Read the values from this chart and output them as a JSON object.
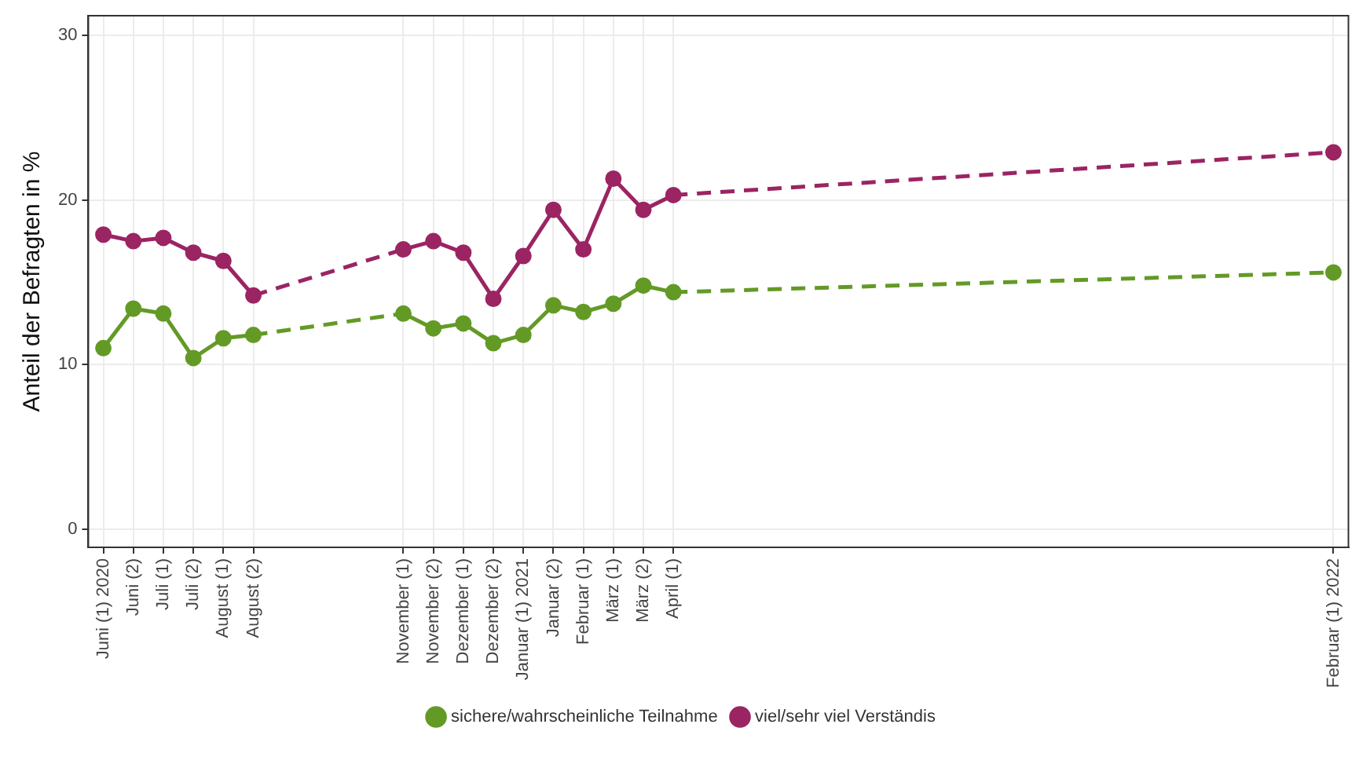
{
  "chart_data": {
    "type": "line",
    "ylabel": "Anteil der Befragten in %",
    "categories": [
      "Juni (1) 2020",
      "Juni (2)",
      "Juli (1)",
      "Juli (2)",
      "August (1)",
      "August (2)",
      null,
      null,
      null,
      null,
      "November (1)",
      "November (2)",
      "Dezember (1)",
      "Dezember (2)",
      "Januar (1) 2021",
      "Januar (2)",
      "Februar (1)",
      "März (1)",
      "März (2)",
      "April (1)",
      null,
      null,
      null,
      null,
      null,
      null,
      null,
      null,
      null,
      null,
      null,
      null,
      null,
      null,
      null,
      null,
      null,
      null,
      null,
      null,
      null,
      "Februar (1) 2022"
    ],
    "ylim": [
      -1.1,
      31.2
    ],
    "yticks": [
      0,
      10,
      20,
      30
    ],
    "grid": true,
    "legend": "bottom",
    "marker": "circle",
    "line_style": "dashed",
    "series": [
      {
        "name": "sichere/wahrscheinliche Teilnahme",
        "color": "#639a26",
        "line_style": "solid",
        "values": [
          11.0,
          13.4,
          13.1,
          10.4,
          11.6,
          11.8,
          null,
          null,
          null,
          null,
          13.1,
          12.2,
          12.5,
          11.3,
          11.8,
          13.6,
          13.2,
          13.7,
          14.8,
          14.4,
          null,
          null,
          null,
          null,
          null,
          null,
          null,
          null,
          null,
          null,
          null,
          null,
          null,
          null,
          null,
          null,
          null,
          null,
          null,
          null,
          null,
          15.6
        ]
      },
      {
        "name": "viel/sehr viel Verständis",
        "color": "#9b2463",
        "line_style": "solid",
        "values": [
          17.9,
          17.5,
          17.7,
          16.8,
          16.3,
          14.2,
          null,
          null,
          null,
          null,
          17.0,
          17.5,
          16.8,
          14.0,
          16.6,
          19.4,
          17.0,
          21.3,
          19.4,
          20.3,
          null,
          null,
          null,
          null,
          null,
          null,
          null,
          null,
          null,
          null,
          null,
          null,
          null,
          null,
          null,
          null,
          null,
          null,
          null,
          null,
          null,
          22.9
        ]
      }
    ]
  }
}
